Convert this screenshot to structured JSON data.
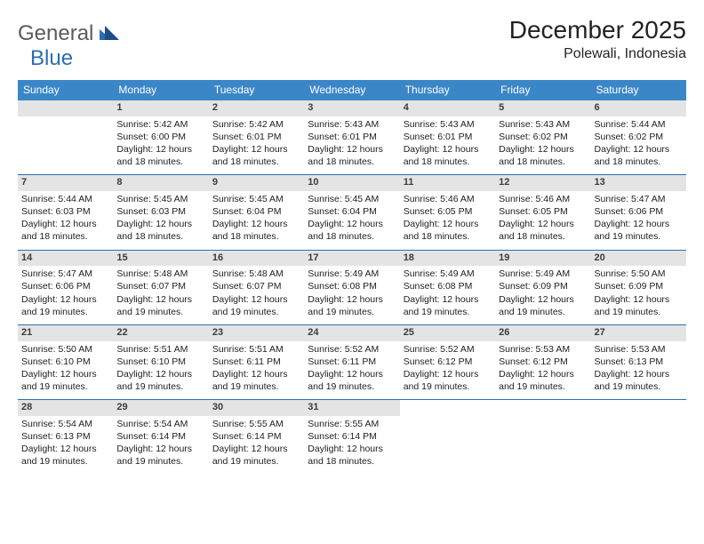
{
  "logo": {
    "text_general": "General",
    "text_blue": "Blue"
  },
  "title": {
    "month": "December 2025",
    "location": "Polewali, Indonesia"
  },
  "colors": {
    "header_bg": "#3b86c7",
    "header_text": "#ffffff",
    "daynum_bg": "#e4e4e4",
    "rule": "#2b6fb0",
    "logo_gray": "#5b5b5b",
    "logo_blue": "#2b6fb0",
    "body_text": "#222222",
    "page_bg": "#ffffff"
  },
  "days_of_week": [
    "Sunday",
    "Monday",
    "Tuesday",
    "Wednesday",
    "Thursday",
    "Friday",
    "Saturday"
  ],
  "weeks": [
    [
      null,
      {
        "n": "1",
        "sunrise": "Sunrise: 5:42 AM",
        "sunset": "Sunset: 6:00 PM",
        "day1": "Daylight: 12 hours",
        "day2": "and 18 minutes."
      },
      {
        "n": "2",
        "sunrise": "Sunrise: 5:42 AM",
        "sunset": "Sunset: 6:01 PM",
        "day1": "Daylight: 12 hours",
        "day2": "and 18 minutes."
      },
      {
        "n": "3",
        "sunrise": "Sunrise: 5:43 AM",
        "sunset": "Sunset: 6:01 PM",
        "day1": "Daylight: 12 hours",
        "day2": "and 18 minutes."
      },
      {
        "n": "4",
        "sunrise": "Sunrise: 5:43 AM",
        "sunset": "Sunset: 6:01 PM",
        "day1": "Daylight: 12 hours",
        "day2": "and 18 minutes."
      },
      {
        "n": "5",
        "sunrise": "Sunrise: 5:43 AM",
        "sunset": "Sunset: 6:02 PM",
        "day1": "Daylight: 12 hours",
        "day2": "and 18 minutes."
      },
      {
        "n": "6",
        "sunrise": "Sunrise: 5:44 AM",
        "sunset": "Sunset: 6:02 PM",
        "day1": "Daylight: 12 hours",
        "day2": "and 18 minutes."
      }
    ],
    [
      {
        "n": "7",
        "sunrise": "Sunrise: 5:44 AM",
        "sunset": "Sunset: 6:03 PM",
        "day1": "Daylight: 12 hours",
        "day2": "and 18 minutes."
      },
      {
        "n": "8",
        "sunrise": "Sunrise: 5:45 AM",
        "sunset": "Sunset: 6:03 PM",
        "day1": "Daylight: 12 hours",
        "day2": "and 18 minutes."
      },
      {
        "n": "9",
        "sunrise": "Sunrise: 5:45 AM",
        "sunset": "Sunset: 6:04 PM",
        "day1": "Daylight: 12 hours",
        "day2": "and 18 minutes."
      },
      {
        "n": "10",
        "sunrise": "Sunrise: 5:45 AM",
        "sunset": "Sunset: 6:04 PM",
        "day1": "Daylight: 12 hours",
        "day2": "and 18 minutes."
      },
      {
        "n": "11",
        "sunrise": "Sunrise: 5:46 AM",
        "sunset": "Sunset: 6:05 PM",
        "day1": "Daylight: 12 hours",
        "day2": "and 18 minutes."
      },
      {
        "n": "12",
        "sunrise": "Sunrise: 5:46 AM",
        "sunset": "Sunset: 6:05 PM",
        "day1": "Daylight: 12 hours",
        "day2": "and 18 minutes."
      },
      {
        "n": "13",
        "sunrise": "Sunrise: 5:47 AM",
        "sunset": "Sunset: 6:06 PM",
        "day1": "Daylight: 12 hours",
        "day2": "and 19 minutes."
      }
    ],
    [
      {
        "n": "14",
        "sunrise": "Sunrise: 5:47 AM",
        "sunset": "Sunset: 6:06 PM",
        "day1": "Daylight: 12 hours",
        "day2": "and 19 minutes."
      },
      {
        "n": "15",
        "sunrise": "Sunrise: 5:48 AM",
        "sunset": "Sunset: 6:07 PM",
        "day1": "Daylight: 12 hours",
        "day2": "and 19 minutes."
      },
      {
        "n": "16",
        "sunrise": "Sunrise: 5:48 AM",
        "sunset": "Sunset: 6:07 PM",
        "day1": "Daylight: 12 hours",
        "day2": "and 19 minutes."
      },
      {
        "n": "17",
        "sunrise": "Sunrise: 5:49 AM",
        "sunset": "Sunset: 6:08 PM",
        "day1": "Daylight: 12 hours",
        "day2": "and 19 minutes."
      },
      {
        "n": "18",
        "sunrise": "Sunrise: 5:49 AM",
        "sunset": "Sunset: 6:08 PM",
        "day1": "Daylight: 12 hours",
        "day2": "and 19 minutes."
      },
      {
        "n": "19",
        "sunrise": "Sunrise: 5:49 AM",
        "sunset": "Sunset: 6:09 PM",
        "day1": "Daylight: 12 hours",
        "day2": "and 19 minutes."
      },
      {
        "n": "20",
        "sunrise": "Sunrise: 5:50 AM",
        "sunset": "Sunset: 6:09 PM",
        "day1": "Daylight: 12 hours",
        "day2": "and 19 minutes."
      }
    ],
    [
      {
        "n": "21",
        "sunrise": "Sunrise: 5:50 AM",
        "sunset": "Sunset: 6:10 PM",
        "day1": "Daylight: 12 hours",
        "day2": "and 19 minutes."
      },
      {
        "n": "22",
        "sunrise": "Sunrise: 5:51 AM",
        "sunset": "Sunset: 6:10 PM",
        "day1": "Daylight: 12 hours",
        "day2": "and 19 minutes."
      },
      {
        "n": "23",
        "sunrise": "Sunrise: 5:51 AM",
        "sunset": "Sunset: 6:11 PM",
        "day1": "Daylight: 12 hours",
        "day2": "and 19 minutes."
      },
      {
        "n": "24",
        "sunrise": "Sunrise: 5:52 AM",
        "sunset": "Sunset: 6:11 PM",
        "day1": "Daylight: 12 hours",
        "day2": "and 19 minutes."
      },
      {
        "n": "25",
        "sunrise": "Sunrise: 5:52 AM",
        "sunset": "Sunset: 6:12 PM",
        "day1": "Daylight: 12 hours",
        "day2": "and 19 minutes."
      },
      {
        "n": "26",
        "sunrise": "Sunrise: 5:53 AM",
        "sunset": "Sunset: 6:12 PM",
        "day1": "Daylight: 12 hours",
        "day2": "and 19 minutes."
      },
      {
        "n": "27",
        "sunrise": "Sunrise: 5:53 AM",
        "sunset": "Sunset: 6:13 PM",
        "day1": "Daylight: 12 hours",
        "day2": "and 19 minutes."
      }
    ],
    [
      {
        "n": "28",
        "sunrise": "Sunrise: 5:54 AM",
        "sunset": "Sunset: 6:13 PM",
        "day1": "Daylight: 12 hours",
        "day2": "and 19 minutes."
      },
      {
        "n": "29",
        "sunrise": "Sunrise: 5:54 AM",
        "sunset": "Sunset: 6:14 PM",
        "day1": "Daylight: 12 hours",
        "day2": "and 19 minutes."
      },
      {
        "n": "30",
        "sunrise": "Sunrise: 5:55 AM",
        "sunset": "Sunset: 6:14 PM",
        "day1": "Daylight: 12 hours",
        "day2": "and 19 minutes."
      },
      {
        "n": "31",
        "sunrise": "Sunrise: 5:55 AM",
        "sunset": "Sunset: 6:14 PM",
        "day1": "Daylight: 12 hours",
        "day2": "and 18 minutes."
      },
      null,
      null,
      null
    ]
  ]
}
